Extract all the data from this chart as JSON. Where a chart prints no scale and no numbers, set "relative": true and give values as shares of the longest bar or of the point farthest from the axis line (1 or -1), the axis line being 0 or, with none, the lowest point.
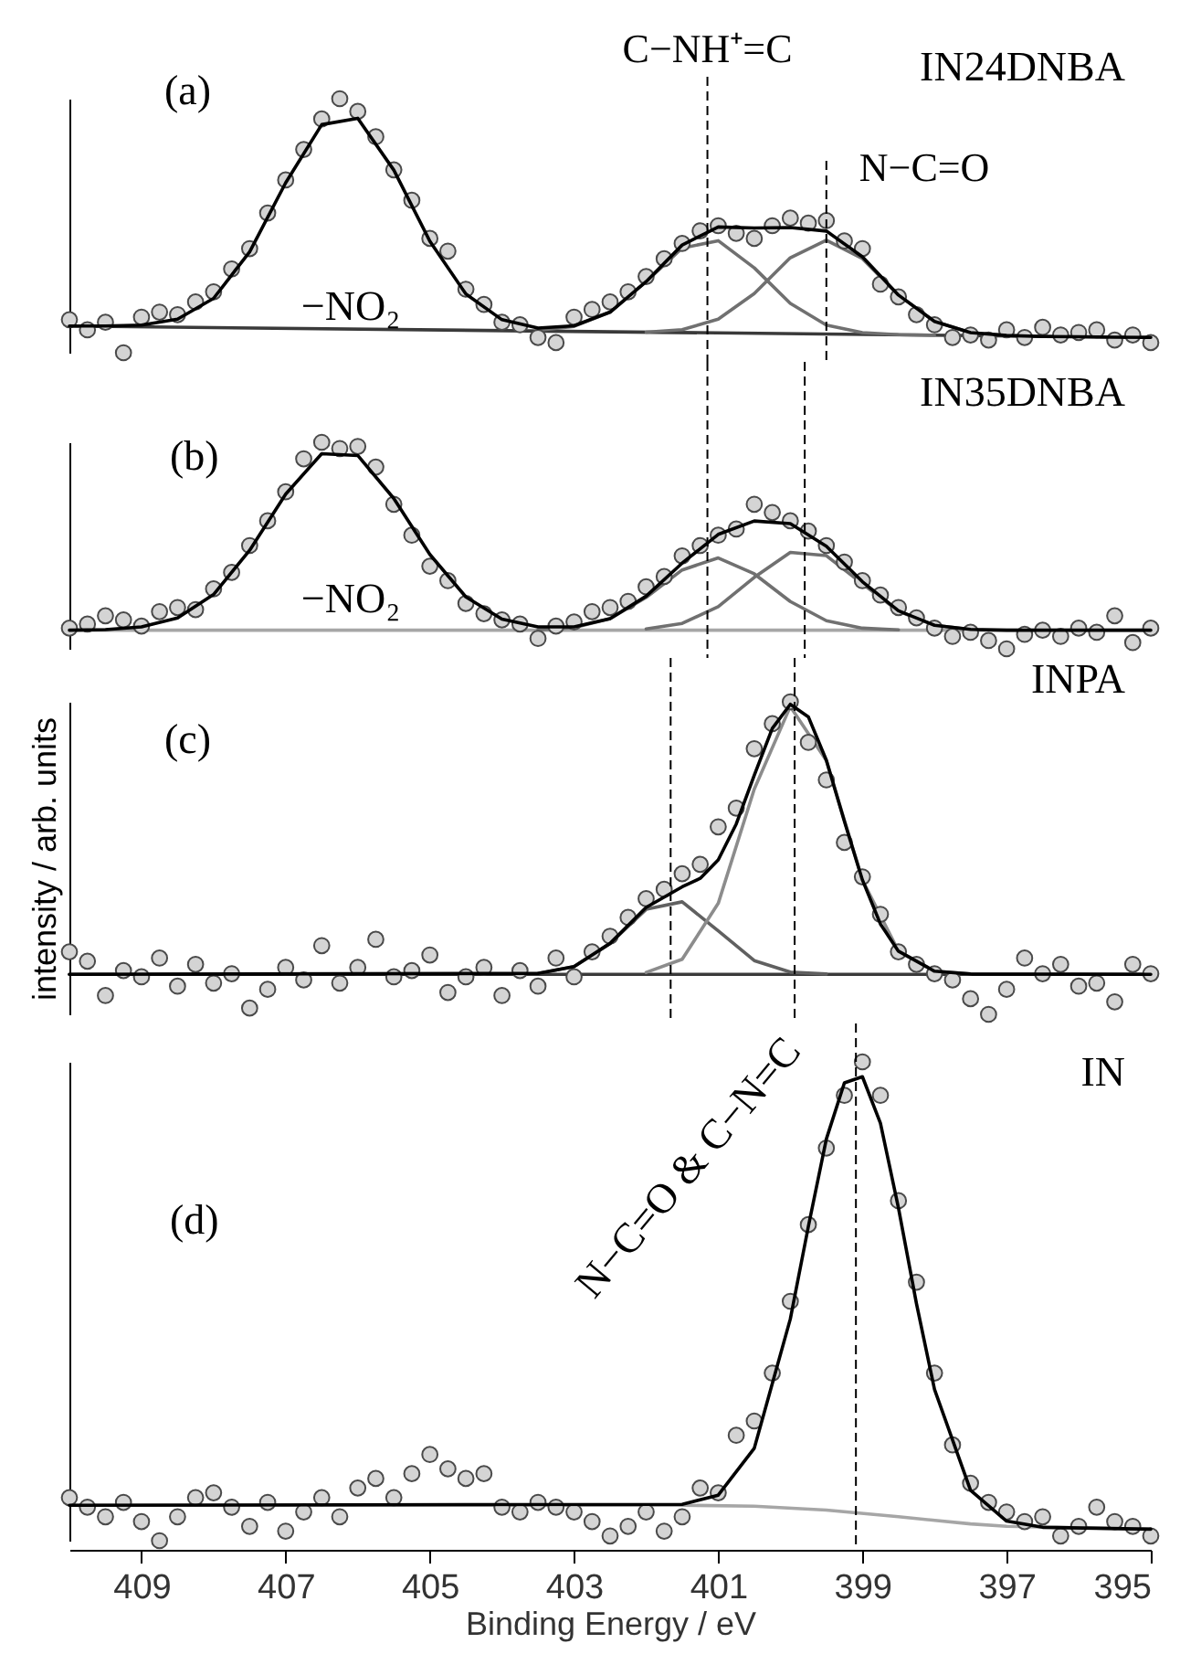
{
  "chart_data": [
    {
      "type": "line",
      "relative": true,
      "xlim": [
        410,
        395
      ],
      "tick_labels": false,
      "x": [
        410,
        409.75,
        409.5,
        409.25,
        409,
        408.75,
        408.5,
        408.25,
        408,
        407.75,
        407.5,
        407.25,
        407,
        406.75,
        406.5,
        406.25,
        406,
        405.75,
        405.5,
        405.25,
        405,
        404.75,
        404.5,
        404.25,
        404,
        403.75,
        403.5,
        403.25,
        403,
        402.75,
        402.5,
        402.25,
        402,
        401.75,
        401.5,
        401.25,
        401,
        400.75,
        400.5,
        400.25,
        400,
        399.75,
        399.5,
        399.25,
        399,
        398.75,
        398.5,
        398.25,
        398,
        397.75,
        397.5,
        397.25,
        397,
        396.75,
        396.5,
        396.25,
        396,
        395.75,
        395.5,
        395.25,
        395
      ],
      "series": [
        {
          "type": "line",
          "color": "#3a3a3a",
          "x": [
            410,
            395
          ],
          "values": [
            0.105,
            0.06
          ]
        },
        {
          "type": "line",
          "color": "#707070",
          "x": [
            403.5,
            403,
            402.5,
            402,
            401.5,
            401,
            400.5,
            400,
            399.5,
            399,
            398.5,
            398
          ],
          "values": [
            0.088,
            0.104,
            0.16,
            0.28,
            0.412,
            0.441,
            0.334,
            0.194,
            0.109,
            0.079,
            0.071,
            0.069
          ]
        },
        {
          "type": "line",
          "color": "#707070",
          "x": [
            402,
            401.5,
            401,
            400.5,
            400,
            399.5,
            399,
            398.5,
            398,
            397.5,
            397,
            396.5
          ],
          "values": [
            0.081,
            0.091,
            0.132,
            0.233,
            0.374,
            0.443,
            0.371,
            0.227,
            0.123,
            0.079,
            0.068,
            0.064
          ]
        },
        {
          "type": "scatter",
          "color": "#d4d4d4",
          "values": [
            0.13,
            0.09,
            0.12,
            0,
            0.14,
            0.16,
            0.15,
            0.2,
            0.24,
            0.33,
            0.41,
            0.55,
            0.68,
            0.8,
            0.92,
            1.0,
            0.95,
            0.85,
            0.72,
            0.6,
            0.45,
            0.4,
            0.25,
            0.19,
            0.12,
            0.11,
            0.06,
            0.04,
            0.14,
            0.17,
            0.2,
            0.24,
            0.3,
            0.37,
            0.43,
            0.48,
            0.5,
            0.47,
            0.45,
            0.5,
            0.53,
            0.51,
            0.52,
            0.44,
            0.41,
            0.27,
            0.22,
            0.15,
            0.11,
            0.06,
            0.07,
            0.05,
            0.09,
            0.06,
            0.1,
            0.07,
            0.08,
            0.09,
            0.05,
            0.07,
            0.04
          ]
        },
        {
          "type": "line",
          "color": "#000000",
          "x": [
            410,
            409.5,
            409,
            408.5,
            408,
            407.5,
            407,
            406.5,
            406,
            405.5,
            405,
            404.5,
            404,
            403.5,
            403,
            402.5,
            402,
            401.5,
            401,
            400.5,
            400,
            399.5,
            399,
            398.5,
            398,
            397.5,
            397,
            396.5,
            396,
            395.5,
            395
          ],
          "values": [
            0.105,
            0.105,
            0.109,
            0.132,
            0.214,
            0.397,
            0.669,
            0.898,
            0.923,
            0.719,
            0.439,
            0.231,
            0.13,
            0.097,
            0.106,
            0.16,
            0.28,
            0.424,
            0.495,
            0.491,
            0.493,
            0.479,
            0.378,
            0.227,
            0.123,
            0.079,
            0.068,
            0.064,
            0.063,
            0.061,
            0.06
          ]
        }
      ],
      "ref_lines": [
        {
          "axis": "x",
          "value": 401.15,
          "label": "C−NH⁺=C",
          "line_style": "dashed",
          "color": "#000000"
        },
        {
          "axis": "x",
          "value": 399.5,
          "label": "N−C=O",
          "line_style": "dashed",
          "color": "#000000"
        }
      ],
      "annotations": [
        "(a)",
        "IN24DNBA",
        "−NO₂"
      ]
    },
    {
      "type": "line",
      "relative": true,
      "xlim": [
        410,
        395
      ],
      "tick_labels": false,
      "x": [
        410,
        409.75,
        409.5,
        409.25,
        409,
        408.75,
        408.5,
        408.25,
        408,
        407.75,
        407.5,
        407.25,
        407,
        406.75,
        406.5,
        406.25,
        406,
        405.75,
        405.5,
        405.25,
        405,
        404.75,
        404.5,
        404.25,
        404,
        403.75,
        403.5,
        403.25,
        403,
        402.75,
        402.5,
        402.25,
        402,
        401.75,
        401.5,
        401.25,
        401,
        400.75,
        400.5,
        400.25,
        400,
        399.75,
        399.5,
        399.25,
        399,
        398.75,
        398.5,
        398.25,
        398,
        397.75,
        397.5,
        397.25,
        397,
        396.75,
        396.5,
        396.25,
        396,
        395.75,
        395.5,
        395.25,
        395
      ],
      "series": [
        {
          "type": "line",
          "color": "#a6a6a6",
          "x": [
            410,
            395
          ],
          "values": [
            0.09,
            0.09
          ]
        },
        {
          "type": "line",
          "color": "#707070",
          "x": [
            403.5,
            403,
            402.5,
            402,
            401.5,
            401,
            400.5,
            400,
            399.5,
            399,
            398.5
          ],
          "values": [
            0.092,
            0.103,
            0.146,
            0.249,
            0.382,
            0.44,
            0.363,
            0.229,
            0.136,
            0.1,
            0.092
          ]
        },
        {
          "type": "line",
          "color": "#707070",
          "x": [
            402,
            401.5,
            401,
            400.5,
            400,
            399.5,
            399,
            398.5,
            398,
            397.5
          ],
          "values": [
            0.096,
            0.123,
            0.204,
            0.346,
            0.467,
            0.451,
            0.315,
            0.182,
            0.114,
            0.094
          ]
        },
        {
          "type": "scatter",
          "color": "#d4d4d4",
          "values": [
            0.1,
            0.12,
            0.16,
            0.14,
            0.11,
            0.18,
            0.2,
            0.19,
            0.29,
            0.37,
            0.5,
            0.62,
            0.76,
            0.92,
            1.0,
            0.97,
            0.98,
            0.88,
            0.7,
            0.55,
            0.4,
            0.33,
            0.22,
            0.17,
            0.14,
            0.12,
            0.05,
            0.11,
            0.13,
            0.18,
            0.2,
            0.23,
            0.3,
            0.35,
            0.45,
            0.5,
            0.55,
            0.58,
            0.7,
            0.66,
            0.62,
            0.57,
            0.5,
            0.42,
            0.33,
            0.26,
            0.2,
            0.15,
            0.1,
            0.06,
            0.08,
            0.04,
            0,
            0.07,
            0.09,
            0.06,
            0.1,
            0.08,
            0.16,
            0.03,
            0.1
          ]
        },
        {
          "type": "line",
          "color": "#000000",
          "x": [
            410,
            409.5,
            409,
            408.5,
            408,
            407.5,
            407,
            406.5,
            406,
            405.5,
            405,
            404.5,
            404,
            403.5,
            403,
            402.5,
            402,
            401.5,
            401,
            400.5,
            400,
            399.5,
            399,
            398.5,
            398,
            397.5,
            397,
            396.5,
            396,
            395.5,
            395
          ],
          "values": [
            0.09,
            0.093,
            0.106,
            0.149,
            0.263,
            0.477,
            0.749,
            0.945,
            0.936,
            0.728,
            0.457,
            0.251,
            0.144,
            0.106,
            0.106,
            0.146,
            0.255,
            0.415,
            0.554,
            0.619,
            0.606,
            0.497,
            0.325,
            0.184,
            0.114,
            0.094,
            0.09,
            0.09,
            0.09,
            0.09,
            0.09
          ]
        }
      ],
      "ref_lines": [
        {
          "axis": "x",
          "value": 401.15,
          "line_style": "dashed",
          "color": "#000000"
        },
        {
          "axis": "x",
          "value": 399.8,
          "line_style": "dashed",
          "color": "#000000"
        }
      ],
      "annotations": [
        "(b)",
        "IN35DNBA",
        "−NO₂"
      ]
    },
    {
      "type": "line",
      "relative": true,
      "xlim": [
        410,
        395
      ],
      "tick_labels": false,
      "ylabel": "intensity / arb. units",
      "x": [
        410,
        409.75,
        409.5,
        409.25,
        409,
        408.75,
        408.5,
        408.25,
        408,
        407.75,
        407.5,
        407.25,
        407,
        406.75,
        406.5,
        406.25,
        406,
        405.75,
        405.5,
        405.25,
        405,
        404.75,
        404.5,
        404.25,
        404,
        403.75,
        403.5,
        403.25,
        403,
        402.75,
        402.5,
        402.25,
        402,
        401.75,
        401.5,
        401.25,
        401,
        400.75,
        400.5,
        400.25,
        400,
        399.75,
        399.5,
        399.25,
        399,
        398.75,
        398.5,
        398.25,
        398,
        397.75,
        397.5,
        397.25,
        397,
        396.75,
        396.5,
        396.25,
        396,
        395.75,
        395.5,
        395.25,
        395
      ],
      "series": [
        {
          "type": "line",
          "color": "#3a3a3a",
          "x": [
            410,
            395
          ],
          "values": [
            0.128,
            0.128
          ]
        },
        {
          "type": "line",
          "color": "#606060",
          "x": [
            403.5,
            403,
            402.5,
            402,
            401.5,
            401,
            400.5,
            400,
            399.5
          ],
          "values": [
            0.131,
            0.153,
            0.227,
            0.336,
            0.36,
            0.267,
            0.172,
            0.135,
            0.129
          ]
        },
        {
          "type": "line",
          "color": "#8c8c8c",
          "x": [
            402,
            401.5,
            401,
            400.5,
            400,
            399.5,
            399,
            398.5,
            398,
            397.5
          ],
          "values": [
            0.134,
            0.176,
            0.355,
            0.721,
            0.985,
            0.812,
            0.43,
            0.202,
            0.138,
            0.129
          ]
        },
        {
          "type": "scatter",
          "color": "#d4d4d4",
          "values": [
            0.2,
            0.17,
            0.06,
            0.14,
            0.12,
            0.18,
            0.09,
            0.16,
            0.1,
            0.13,
            0.02,
            0.08,
            0.15,
            0.11,
            0.22,
            0.1,
            0.15,
            0.24,
            0.12,
            0.14,
            0.19,
            0.07,
            0.12,
            0.15,
            0.06,
            0.14,
            0.09,
            0.18,
            0.12,
            0.2,
            0.25,
            0.31,
            0.37,
            0.4,
            0.45,
            0.48,
            0.6,
            0.66,
            0.85,
            0.93,
            1.0,
            0.87,
            0.75,
            0.55,
            0.44,
            0.32,
            0.2,
            0.16,
            0.13,
            0.11,
            0.05,
            0,
            0.08,
            0.18,
            0.13,
            0.16,
            0.09,
            0.1,
            0.04,
            0.16,
            0.13
          ]
        },
        {
          "type": "line",
          "color": "#000000",
          "x": [
            410,
            403.5,
            403,
            402.5,
            402,
            401.5,
            401.25,
            401,
            400.75,
            400.5,
            400.25,
            400,
            399.75,
            399.5,
            399.25,
            399,
            398.75,
            398.5,
            398,
            397.5,
            395
          ],
          "values": [
            0.128,
            0.131,
            0.153,
            0.227,
            0.342,
            0.408,
            0.435,
            0.494,
            0.609,
            0.765,
            0.915,
            0.992,
            0.952,
            0.813,
            0.618,
            0.43,
            0.289,
            0.202,
            0.138,
            0.129,
            0.128
          ]
        }
      ],
      "ref_lines": [
        {
          "axis": "x",
          "value": 401.66,
          "line_style": "dashed",
          "color": "#000000"
        },
        {
          "axis": "x",
          "value": 399.94,
          "line_style": "dashed",
          "color": "#000000"
        }
      ],
      "annotations": [
        "(c)",
        "INPA"
      ]
    },
    {
      "type": "line",
      "relative": true,
      "xlim": [
        410,
        395
      ],
      "tick_labels": "x",
      "xlabel": "Binding Energy / eV",
      "xticks": [
        409,
        407,
        405,
        403,
        401,
        399,
        397,
        395
      ],
      "x": [
        410,
        409.75,
        409.5,
        409.25,
        409,
        408.75,
        408.5,
        408.25,
        408,
        407.75,
        407.5,
        407.25,
        407,
        406.75,
        406.5,
        406.25,
        406,
        405.75,
        405.5,
        405.25,
        405,
        404.75,
        404.5,
        404.25,
        404,
        403.75,
        403.5,
        403.25,
        403,
        402.75,
        402.5,
        402.25,
        402,
        401.75,
        401.5,
        401.25,
        401,
        400.75,
        400.5,
        400.25,
        400,
        399.75,
        399.5,
        399.25,
        399,
        398.75,
        398.5,
        398.25,
        398,
        397.75,
        397.5,
        397.25,
        397,
        396.75,
        396.5,
        396.25,
        396,
        395.75,
        395.5,
        395.25,
        395
      ],
      "series": [
        {
          "type": "line",
          "color": "#a6a6a6",
          "x": [
            410,
            401.5,
            400.5,
            399.5,
            398.5,
            397.5,
            397,
            395
          ],
          "values": [
            0.074,
            0.074,
            0.072,
            0.064,
            0.05,
            0.035,
            0.03,
            0.024
          ]
        },
        {
          "type": "scatter",
          "color": "#d4d4d4",
          "values": [
            0.09,
            0.07,
            0.05,
            0.08,
            0.04,
            0,
            0.05,
            0.09,
            0.1,
            0.07,
            0.03,
            0.08,
            0.02,
            0.06,
            0.09,
            0.05,
            0.11,
            0.13,
            0.09,
            0.14,
            0.18,
            0.15,
            0.13,
            0.14,
            0.07,
            0.06,
            0.08,
            0.07,
            0.06,
            0.04,
            0.01,
            0.03,
            0.06,
            0.02,
            0.05,
            0.11,
            0.1,
            0.22,
            0.25,
            0.35,
            0.5,
            0.66,
            0.82,
            0.93,
            1.0,
            0.93,
            0.71,
            0.54,
            0.35,
            0.2,
            0.12,
            0.08,
            0.06,
            0.04,
            0.05,
            0.01,
            0.03,
            0.07,
            0.04,
            0.03,
            0.01
          ]
        },
        {
          "type": "line",
          "color": "#000000",
          "x": [
            410,
            401.5,
            401,
            400.5,
            400,
            399.75,
            399.5,
            399.25,
            399,
            398.75,
            398.5,
            398.25,
            398,
            397.5,
            397,
            396.5,
            395
          ],
          "values": [
            0.074,
            0.076,
            0.095,
            0.193,
            0.463,
            0.656,
            0.839,
            0.956,
            0.969,
            0.872,
            0.695,
            0.495,
            0.316,
            0.105,
            0.041,
            0.028,
            0.024
          ]
        }
      ],
      "ref_lines": [
        {
          "axis": "x",
          "value": 399.09,
          "line_style": "dashed",
          "color": "#000000"
        }
      ],
      "annotations": [
        "(d)",
        "IN",
        "N−C=O & C−N=C"
      ]
    }
  ]
}
